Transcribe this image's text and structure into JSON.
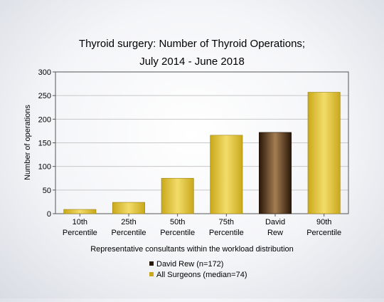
{
  "chart_data": {
    "type": "bar",
    "title_line1": "Thyroid surgery: Number of Thyroid Operations;",
    "title_line2": "July 2014 - June 2018",
    "xlabel": "Representative consultants within the workload distribution",
    "ylabel": "Number of operations",
    "ylim": [
      0,
      300
    ],
    "yticks": [
      0,
      50,
      100,
      150,
      200,
      250,
      300
    ],
    "grid": true,
    "categories": [
      [
        "10th",
        "Percentile"
      ],
      [
        "25th",
        "Percentile"
      ],
      [
        "50th",
        "Percentile"
      ],
      [
        "75th",
        "Percentile"
      ],
      [
        "David",
        "Rew"
      ],
      [
        "90th",
        "Percentile"
      ]
    ],
    "values": [
      9,
      24,
      75,
      166,
      172,
      257
    ],
    "bar_series": [
      "all",
      "all",
      "all",
      "all",
      "david",
      "all"
    ],
    "colors": {
      "all": "#c9a81a",
      "all_light": "#f3dc6a",
      "david": "#2a1708",
      "david_light": "#a47d52"
    },
    "legend": [
      {
        "key": "david",
        "label": "David Rew (n=172)"
      },
      {
        "key": "all",
        "label": "All Surgeons (median=74)"
      }
    ],
    "legend_position": "bottom-center"
  }
}
